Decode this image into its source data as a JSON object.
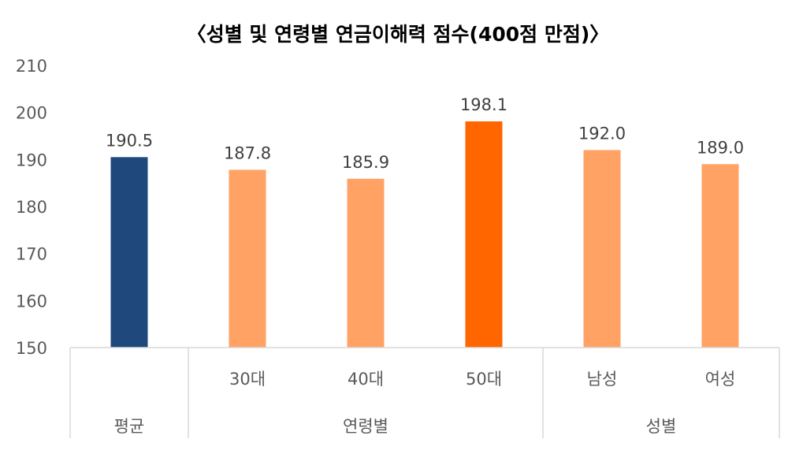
{
  "chart_data": {
    "type": "bar",
    "title": "〈성별 및 연령별 연금이해력 점수(400점 만점)〉",
    "categories": [
      "평균",
      "30대",
      "40대",
      "50대",
      "남성",
      "여성"
    ],
    "category_labels": [
      "",
      "30대",
      "40대",
      "50대",
      "남성",
      "여성"
    ],
    "groups": [
      {
        "label": "평균",
        "categories": [
          "평균"
        ]
      },
      {
        "label": "연령별",
        "categories": [
          "30대",
          "40대",
          "50대"
        ]
      },
      {
        "label": "성별",
        "categories": [
          "남성",
          "여성"
        ]
      }
    ],
    "values": [
      190.5,
      187.8,
      185.9,
      198.1,
      192.0,
      189.0
    ],
    "data_labels": [
      "190.5",
      "187.8",
      "185.9",
      "198.1",
      "192.0",
      "189.0"
    ],
    "colors": [
      "#1F497D",
      "#FFA264",
      "#FFA264",
      "#FF6600",
      "#FFA264",
      "#FFA264"
    ],
    "yticks": [
      "150",
      "160",
      "170",
      "180",
      "190",
      "200",
      "210"
    ],
    "ylim": [
      150,
      210
    ],
    "xlabel": "",
    "ylabel": "",
    "grid": false,
    "legend": "none"
  }
}
